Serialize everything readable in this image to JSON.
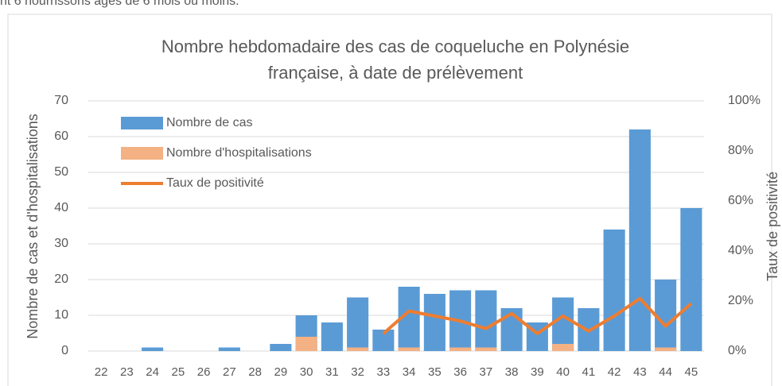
{
  "header_text": "nt 6 nourrissons âgés de 6 mois ou moins.",
  "chart_data": {
    "type": "bar",
    "title": [
      "Nombre hebdomadaire des cas de coqueluche en Polynésie",
      "française, à date de prélèvement"
    ],
    "y_label": "Nombre de cas et d'hospitalisations",
    "y2_label": "Taux de positivité",
    "categories": [
      "22",
      "23",
      "24",
      "25",
      "26",
      "27",
      "28",
      "29",
      "30",
      "31",
      "32",
      "33",
      "34",
      "35",
      "36",
      "37",
      "38",
      "39",
      "40",
      "41",
      "42",
      "43",
      "44",
      "45"
    ],
    "series": [
      {
        "name": "Nombre de cas",
        "type": "bar",
        "color": "#5b9bd5",
        "values": [
          0,
          0,
          1,
          0,
          0,
          1,
          0,
          2,
          10,
          8,
          15,
          6,
          18,
          16,
          17,
          17,
          12,
          8,
          15,
          12,
          34,
          62,
          20,
          40
        ]
      },
      {
        "name": "Nombre d'hospitalisations",
        "type": "bar",
        "color": "#f4b183",
        "values": [
          0,
          0,
          0,
          0,
          0,
          0,
          0,
          0,
          4,
          0,
          1,
          0,
          1,
          0,
          1,
          1,
          0,
          0,
          2,
          0,
          0,
          0,
          1,
          0
        ]
      },
      {
        "name": "Taux de positivité",
        "type": "line",
        "axis": "y2",
        "color": "#ed7d31",
        "values": [
          null,
          null,
          null,
          null,
          null,
          null,
          null,
          null,
          null,
          null,
          null,
          7,
          16,
          14,
          12,
          9,
          15,
          7,
          14,
          8,
          14,
          21,
          10,
          19
        ]
      }
    ],
    "ylim": [
      0,
      70
    ],
    "yticks": [
      0,
      10,
      20,
      30,
      40,
      50,
      60,
      70
    ],
    "y2lim": [
      0,
      100
    ],
    "y2ticks": [
      {
        "value": 0,
        "label": "0%"
      },
      {
        "value": 20,
        "label": "20%"
      },
      {
        "value": 40,
        "label": "40%"
      },
      {
        "value": 60,
        "label": "60%"
      },
      {
        "value": 80,
        "label": "80%"
      },
      {
        "value": 100,
        "label": "100%"
      }
    ],
    "grid": true,
    "legend": "upper left"
  }
}
